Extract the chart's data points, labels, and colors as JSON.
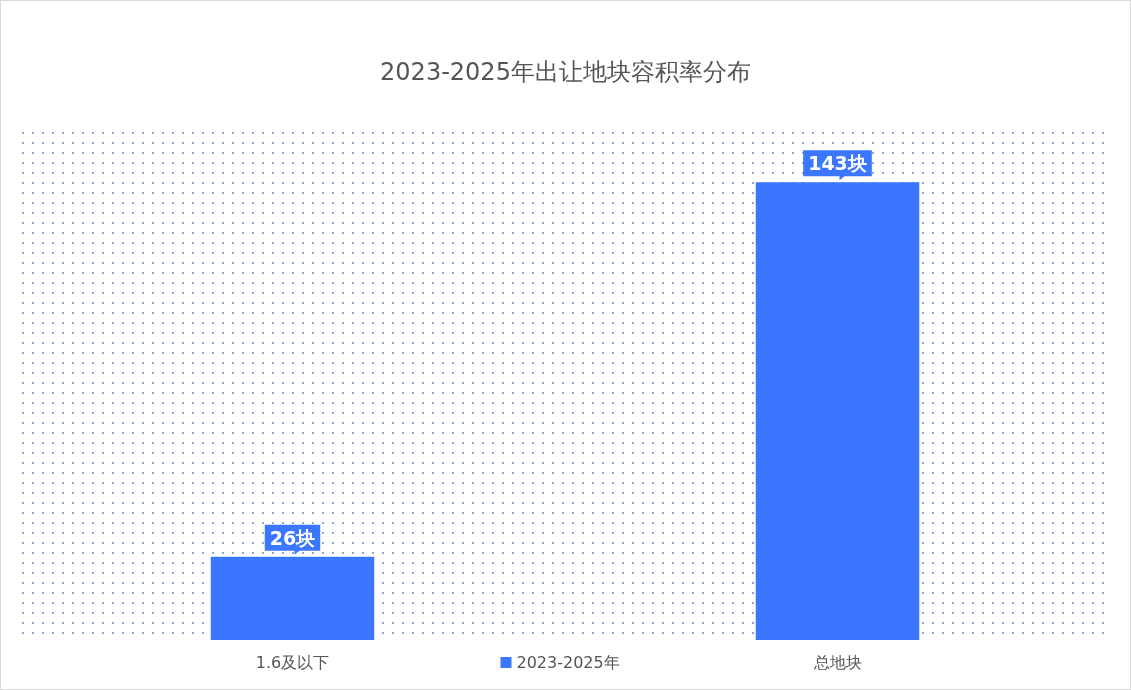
{
  "chart_data": {
    "type": "bar",
    "title": "2023-2025年出让地块容积率分布",
    "categories": [
      "1.6及以下",
      "总地块"
    ],
    "series": [
      {
        "name": "2023-2025年",
        "color": "#3b76fe",
        "values": [
          26,
          143
        ],
        "value_labels": [
          "26块",
          "143块"
        ]
      }
    ],
    "legend": "bottom"
  }
}
